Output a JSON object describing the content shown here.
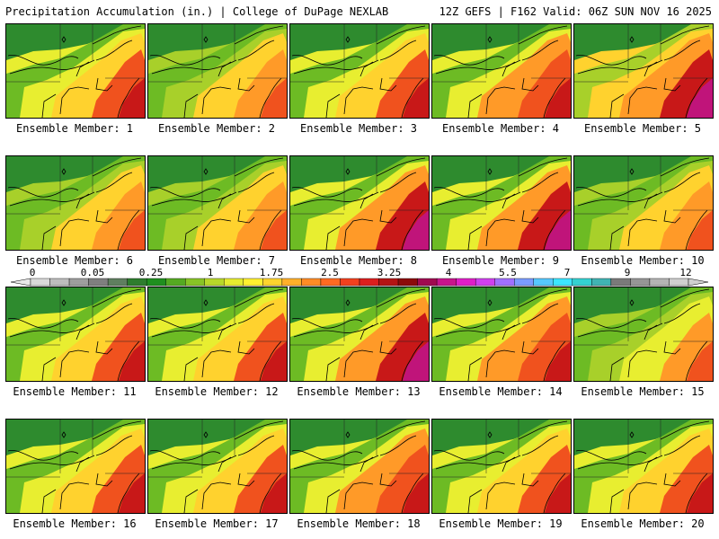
{
  "header": {
    "title_left": "Precipitation Accumulation (in.) | College of DuPage NEXLAB",
    "title_right": "12Z GEFS | F162 Valid: 06Z SUN NOV 16 2025"
  },
  "panels": [
    {
      "label": "Ensemble Member: 1",
      "intensity": 0.62
    },
    {
      "label": "Ensemble Member: 2",
      "intensity": 0.45
    },
    {
      "label": "Ensemble Member: 3",
      "intensity": 0.5
    },
    {
      "label": "Ensemble Member: 4",
      "intensity": 0.68
    },
    {
      "label": "Ensemble Member: 5",
      "intensity": 0.85
    },
    {
      "label": "Ensemble Member: 6",
      "intensity": 0.45
    },
    {
      "label": "Ensemble Member: 7",
      "intensity": 0.38
    },
    {
      "label": "Ensemble Member: 8",
      "intensity": 0.72
    },
    {
      "label": "Ensemble Member: 9",
      "intensity": 0.7
    },
    {
      "label": "Ensemble Member: 10",
      "intensity": 0.4
    },
    {
      "label": "Ensemble Member: 11",
      "intensity": 0.62
    },
    {
      "label": "Ensemble Member: 12",
      "intensity": 0.6
    },
    {
      "label": "Ensemble Member: 13",
      "intensity": 0.7
    },
    {
      "label": "Ensemble Member: 14",
      "intensity": 0.68
    },
    {
      "label": "Ensemble Member: 15",
      "intensity": 0.35
    },
    {
      "label": "Ensemble Member: 16",
      "intensity": 0.55
    },
    {
      "label": "Ensemble Member: 17",
      "intensity": 0.55
    },
    {
      "label": "Ensemble Member: 18",
      "intensity": 0.68
    },
    {
      "label": "Ensemble Member: 19",
      "intensity": 0.62
    },
    {
      "label": "Ensemble Member: 20",
      "intensity": 0.6
    }
  ],
  "colorbar": {
    "ticks": [
      "0",
      "0.05",
      "0.25",
      "1",
      "1.75",
      "2.5",
      "3.25",
      "4",
      "5.5",
      "7",
      "9",
      "12"
    ],
    "colors": [
      "#d9d9d9",
      "#bdbdbd",
      "#9e9e9e",
      "#7f7f7f",
      "#5f7f5f",
      "#2e7d2e",
      "#1f8f1f",
      "#55aa22",
      "#88c426",
      "#b8d82a",
      "#e6ec30",
      "#fff030",
      "#ffd42e",
      "#ffb02a",
      "#ff8c26",
      "#ff6a22",
      "#f3401e",
      "#dc1e1e",
      "#b41414",
      "#8c0a0a",
      "#a00a50",
      "#c8148c",
      "#e01ec8",
      "#d040f0",
      "#a070ff",
      "#7a9cff",
      "#56c8ff",
      "#3ce6ff",
      "#34d2d2",
      "#40b4b4",
      "#7a7a7a",
      "#969696",
      "#b4b4b4",
      "#cfcfcf"
    ]
  }
}
